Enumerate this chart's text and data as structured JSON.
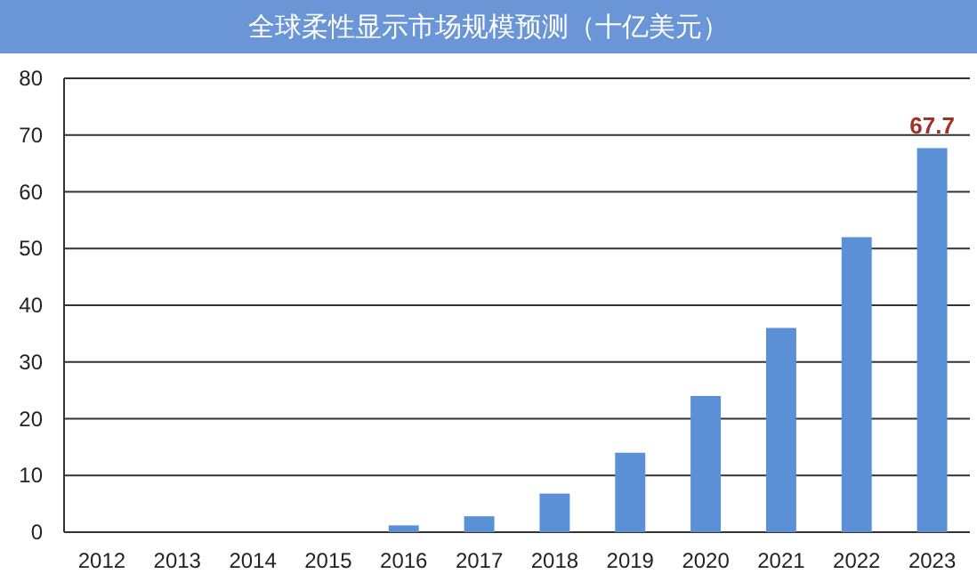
{
  "chart_data": {
    "type": "bar",
    "title": "全球柔性显示市场规模预测（十亿美元）",
    "categories": [
      "2012",
      "2013",
      "2014",
      "2015",
      "2016",
      "2017",
      "2018",
      "2019",
      "2020",
      "2021",
      "2022",
      "2023"
    ],
    "values": [
      0,
      0,
      0,
      0,
      1.2,
      2.8,
      6.8,
      14,
      24,
      36,
      52,
      67.7
    ],
    "value_labels": [
      null,
      null,
      null,
      null,
      null,
      null,
      null,
      null,
      null,
      null,
      null,
      "67.7"
    ],
    "color": "#5b8fd6",
    "ylim": [
      0,
      80
    ],
    "yticks": [
      0,
      10,
      20,
      30,
      40,
      50,
      60,
      70,
      80
    ],
    "grid": "y"
  }
}
